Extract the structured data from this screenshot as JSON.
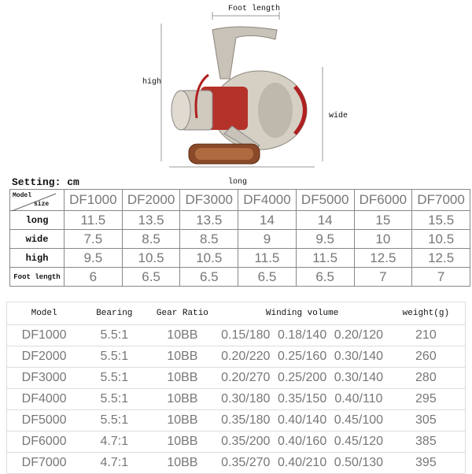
{
  "annotations": {
    "foot_length": "Foot length",
    "high": "high",
    "wide": "wide",
    "long": "long",
    "setting": "Setting: cm"
  },
  "size_table": {
    "corner_top": "Model",
    "corner_bottom": "size",
    "models": [
      "DF1000",
      "DF2000",
      "DF3000",
      "DF4000",
      "DF5000",
      "DF6000",
      "DF7000"
    ],
    "rows": [
      {
        "label": "long",
        "values": [
          "11.5",
          "13.5",
          "13.5",
          "14",
          "14",
          "15",
          "15.5"
        ]
      },
      {
        "label": "wide",
        "values": [
          "7.5",
          "8.5",
          "8.5",
          "9",
          "9.5",
          "10",
          "10.5"
        ]
      },
      {
        "label": "high",
        "values": [
          "9.5",
          "10.5",
          "10.5",
          "11.5",
          "11.5",
          "12.5",
          "12.5"
        ]
      },
      {
        "label": "Foot length",
        "values": [
          "6",
          "6.5",
          "6.5",
          "6.5",
          "6.5",
          "7",
          "7"
        ]
      }
    ]
  },
  "spec_table": {
    "headers": [
      "Model",
      "Bearing",
      "Gear Ratio",
      "Winding volume",
      "weight(g)"
    ],
    "rows": [
      [
        "DF1000",
        "5.5:1",
        "10BB",
        "0.15/180",
        "0.18/140",
        "0.20/120",
        "210"
      ],
      [
        "DF2000",
        "5.5:1",
        "10BB",
        "0.20/220",
        "0.25/160",
        "0.30/140",
        "260"
      ],
      [
        "DF3000",
        "5.5:1",
        "10BB",
        "0.20/270",
        "0.25/200",
        "0.30/140",
        "280"
      ],
      [
        "DF4000",
        "5.5:1",
        "10BB",
        "0.30/180",
        "0.35/150",
        "0.40/110",
        "295"
      ],
      [
        "DF5000",
        "5.5:1",
        "10BB",
        "0.35/180",
        "0.40/140",
        "0.45/100",
        "305"
      ],
      [
        "DF6000",
        "4.7:1",
        "10BB",
        "0.35/200",
        "0.40/160",
        "0.45/120",
        "385"
      ],
      [
        "DF7000",
        "4.7:1",
        "10BB",
        "0.35/270",
        "0.40/210",
        "0.50/130",
        "395"
      ]
    ]
  }
}
